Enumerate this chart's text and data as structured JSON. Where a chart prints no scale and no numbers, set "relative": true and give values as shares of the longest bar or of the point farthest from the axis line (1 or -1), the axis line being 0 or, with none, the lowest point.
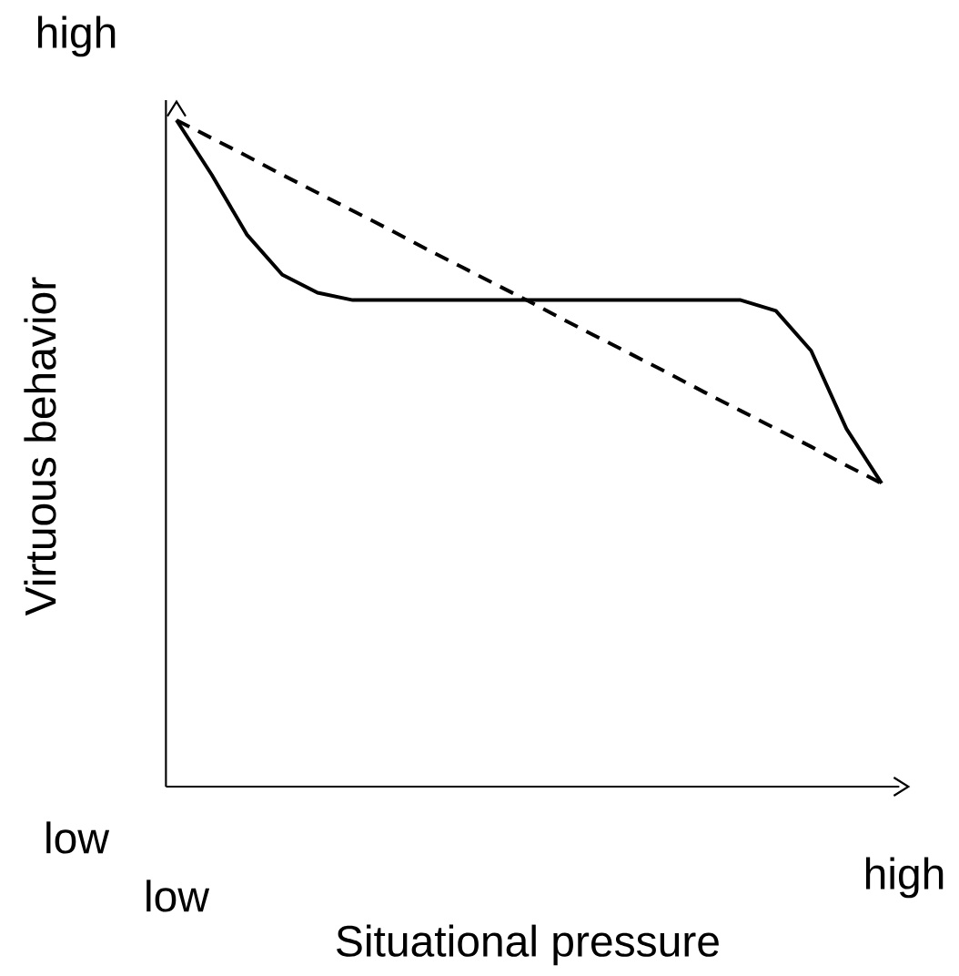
{
  "chart_data": {
    "type": "line",
    "relative": true,
    "xlabel": "Situational pressure",
    "ylabel": "Virtuous behavior",
    "annotations": [
      "high",
      "low",
      "low",
      "high"
    ],
    "categories": [
      null,
      null,
      null,
      null,
      null,
      null,
      null,
      null,
      null,
      null,
      null,
      null,
      null,
      null,
      null,
      null,
      null,
      null,
      null,
      null,
      null
    ],
    "series": [
      {
        "color": "#000000",
        "line_style": "solid",
        "values": [
          1.0,
          0.918,
          0.828,
          0.768,
          0.741,
          0.73,
          0.73,
          0.73,
          0.73,
          0.73,
          0.73,
          0.73,
          0.73,
          0.73,
          0.73,
          0.73,
          0.73,
          0.714,
          0.654,
          0.537,
          0.455
        ]
      },
      {
        "color": "#000000",
        "line_style": "dashed",
        "values": [
          1.0,
          0.973,
          0.946,
          0.918,
          0.891,
          0.864,
          0.837,
          0.809,
          0.782,
          0.755,
          0.728,
          0.7,
          0.673,
          0.646,
          0.619,
          0.591,
          0.564,
          0.537,
          0.51,
          0.482,
          0.455
        ]
      }
    ],
    "marker": "none"
  }
}
